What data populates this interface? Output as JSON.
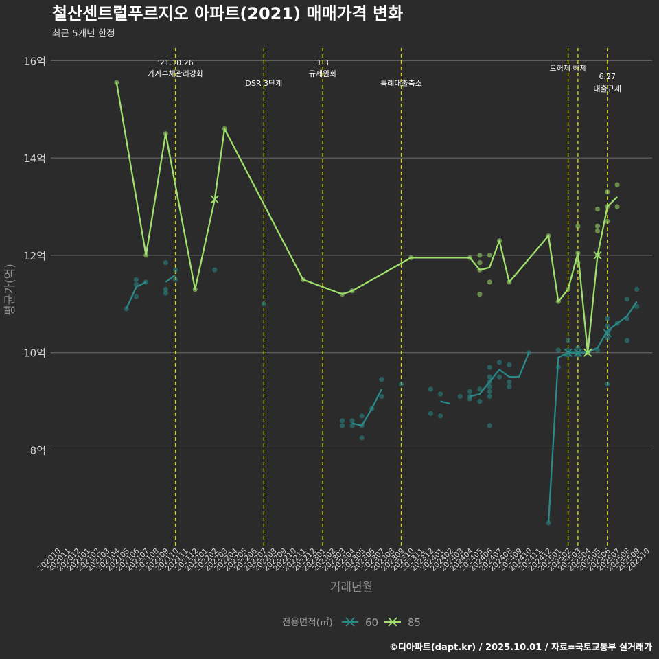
{
  "chart_data": {
    "type": "line",
    "title": "철산센트럴푸르지오 아파트(2021) 매매가격 변화",
    "subtitle": "최근 5개년 한정",
    "xlabel": "거래년월",
    "ylabel": "평균가(억)",
    "ylim": [
      6.0,
      16.5
    ],
    "yticks": [
      8,
      10,
      12,
      14,
      16
    ],
    "ytick_labels": [
      "8억",
      "10억",
      "12억",
      "14억",
      "16억"
    ],
    "x_categories": [
      "202010",
      "202011",
      "202012",
      "202101",
      "202102",
      "202103",
      "202104",
      "202105",
      "202106",
      "202107",
      "202108",
      "202109",
      "202110",
      "202111",
      "202112",
      "202201",
      "202202",
      "202203",
      "202204",
      "202205",
      "202206",
      "202207",
      "202208",
      "202209",
      "202210",
      "202211",
      "202212",
      "202301",
      "202302",
      "202303",
      "202304",
      "202305",
      "202306",
      "202307",
      "202308",
      "202309",
      "202310",
      "202311",
      "202312",
      "202401",
      "202402",
      "202403",
      "202404",
      "202405",
      "202406",
      "202407",
      "202408",
      "202409",
      "202410",
      "202411",
      "202412",
      "202501",
      "202502",
      "202503",
      "202504",
      "202505",
      "202506",
      "202507",
      "202508",
      "202509",
      "202510"
    ],
    "grid": true,
    "legend_title": "전용면적(㎡)",
    "legend_position": "bottom",
    "caption": "©디아파트(dapt.kr) / 2025.10.01 / 자료=국토교통부 실거래가",
    "events": [
      {
        "x": "202110",
        "label_lines": [
          "'21.10.26",
          "가계부채관리강화"
        ]
      },
      {
        "x": "202207",
        "label_lines": [
          "DSR 3단계"
        ]
      },
      {
        "x": "202301",
        "label_lines": [
          "1.3",
          "규제완화"
        ]
      },
      {
        "x": "202309",
        "label_lines": [
          "특례대출축소"
        ]
      },
      {
        "x": "202502",
        "label_lines": [
          "토허제 해제"
        ]
      },
      {
        "x": "202503",
        "label_lines": [
          ""
        ]
      },
      {
        "x": "202506",
        "label_lines": [
          "6.27",
          "대출규제"
        ]
      }
    ],
    "series": [
      {
        "name": "60",
        "color": "#2a8a8a",
        "line_segments": [
          [
            [
              "202105",
              10.9
            ],
            [
              "202106",
              11.35
            ],
            [
              "202107",
              11.45
            ]
          ],
          [
            [
              "202109",
              11.45
            ],
            [
              "202110",
              11.6
            ]
          ],
          [
            [
              "202304",
              8.55
            ],
            [
              "202305",
              8.5
            ],
            [
              "202306",
              8.85
            ],
            [
              "202307",
              9.25
            ]
          ],
          [
            [
              "202401",
              9.0
            ],
            [
              "202402",
              8.95
            ]
          ],
          [
            [
              "202404",
              9.1
            ],
            [
              "202405",
              9.15
            ],
            [
              "202406",
              9.4
            ],
            [
              "202407",
              9.65
            ],
            [
              "202408",
              9.5
            ],
            [
              "202409",
              9.5
            ],
            [
              "202410",
              10.0
            ]
          ],
          [
            [
              "202412",
              6.5
            ],
            [
              "202501",
              9.9
            ],
            [
              "202502",
              10.0
            ],
            [
              "202503",
              10.0
            ],
            [
              "202504",
              10.0
            ],
            [
              "202505",
              10.1
            ],
            [
              "202506",
              10.45
            ],
            [
              "202507",
              10.6
            ],
            [
              "202508",
              10.75
            ],
            [
              "202509",
              11.05
            ]
          ]
        ],
        "points": [
          [
            "202105",
            10.9
          ],
          [
            "202106",
            11.5
          ],
          [
            "202106",
            11.4
          ],
          [
            "202106",
            11.15
          ],
          [
            "202107",
            11.45
          ],
          [
            "202109",
            11.85
          ],
          [
            "202109",
            11.3
          ],
          [
            "202109",
            11.22
          ],
          [
            "202110",
            11.7
          ],
          [
            "202110",
            11.5
          ],
          [
            "202202",
            11.7
          ],
          [
            "202207",
            11.0
          ],
          [
            "202303",
            8.6
          ],
          [
            "202303",
            8.5
          ],
          [
            "202304",
            8.6
          ],
          [
            "202304",
            8.5
          ],
          [
            "202305",
            8.7
          ],
          [
            "202305",
            8.5
          ],
          [
            "202305",
            8.25
          ],
          [
            "202306",
            8.85
          ],
          [
            "202307",
            9.45
          ],
          [
            "202307",
            9.1
          ],
          [
            "202309",
            9.35
          ],
          [
            "202312",
            9.25
          ],
          [
            "202312",
            8.75
          ],
          [
            "202401",
            9.15
          ],
          [
            "202401",
            8.7
          ],
          [
            "202403",
            9.1
          ],
          [
            "202404",
            9.2
          ],
          [
            "202404",
            9.1
          ],
          [
            "202404",
            9.05
          ],
          [
            "202405",
            9.25
          ],
          [
            "202405",
            9.0
          ],
          [
            "202406",
            9.7
          ],
          [
            "202406",
            9.5
          ],
          [
            "202406",
            9.4
          ],
          [
            "202406",
            9.3
          ],
          [
            "202406",
            9.2
          ],
          [
            "202406",
            9.1
          ],
          [
            "202406",
            8.5
          ],
          [
            "202407",
            9.8
          ],
          [
            "202407",
            9.5
          ],
          [
            "202408",
            9.75
          ],
          [
            "202408",
            9.4
          ],
          [
            "202408",
            9.3
          ],
          [
            "202410",
            10.0
          ],
          [
            "202412",
            6.5
          ],
          [
            "202501",
            10.05
          ],
          [
            "202501",
            9.7
          ],
          [
            "202502",
            10.25
          ],
          [
            "202502",
            10.05
          ],
          [
            "202502",
            9.95
          ],
          [
            "202503",
            10.1
          ],
          [
            "202503",
            9.95
          ],
          [
            "202505",
            10.05
          ],
          [
            "202506",
            10.7
          ],
          [
            "202506",
            10.55
          ],
          [
            "202506",
            10.4
          ],
          [
            "202506",
            10.3
          ],
          [
            "202506",
            9.35
          ],
          [
            "202507",
            10.6
          ],
          [
            "202508",
            11.1
          ],
          [
            "202508",
            10.7
          ],
          [
            "202508",
            10.25
          ],
          [
            "202509",
            11.3
          ],
          [
            "202509",
            10.95
          ]
        ],
        "markers": [
          [
            "202502",
            10.0
          ],
          [
            "202503",
            10.0
          ],
          [
            "202504",
            10.0
          ],
          [
            "202506",
            10.4
          ]
        ]
      },
      {
        "name": "85",
        "color": "#a0e06c",
        "line_segments": [
          [
            [
              "202104",
              15.55
            ],
            [
              "202107",
              12.0
            ],
            [
              "202109",
              14.5
            ],
            [
              "202112",
              11.3
            ],
            [
              "202202",
              13.15
            ],
            [
              "202203",
              14.6
            ],
            [
              "202211",
              11.5
            ],
            [
              "202303",
              11.2
            ],
            [
              "202304",
              11.27
            ],
            [
              "202310",
              11.95
            ],
            [
              "202404",
              11.95
            ],
            [
              "202405",
              11.7
            ],
            [
              "202406",
              11.75
            ],
            [
              "202407",
              12.3
            ],
            [
              "202408",
              11.45
            ],
            [
              "202412",
              12.4
            ],
            [
              "202501",
              11.05
            ],
            [
              "202502",
              11.3
            ],
            [
              "202503",
              12.05
            ],
            [
              "202504",
              10.0
            ],
            [
              "202505",
              12.0
            ],
            [
              "202506",
              13.0
            ],
            [
              "202507",
              13.2
            ]
          ]
        ],
        "points": [
          [
            "202104",
            15.55
          ],
          [
            "202107",
            12.0
          ],
          [
            "202109",
            14.5
          ],
          [
            "202112",
            11.3
          ],
          [
            "202203",
            14.6
          ],
          [
            "202211",
            11.5
          ],
          [
            "202303",
            11.2
          ],
          [
            "202304",
            11.27
          ],
          [
            "202310",
            11.95
          ],
          [
            "202404",
            11.95
          ],
          [
            "202405",
            12.0
          ],
          [
            "202405",
            11.85
          ],
          [
            "202405",
            11.7
          ],
          [
            "202405",
            11.2
          ],
          [
            "202406",
            12.0
          ],
          [
            "202406",
            11.45
          ],
          [
            "202407",
            12.3
          ],
          [
            "202408",
            11.45
          ],
          [
            "202412",
            12.4
          ],
          [
            "202501",
            11.05
          ],
          [
            "202502",
            11.3
          ],
          [
            "202503",
            12.6
          ],
          [
            "202503",
            12.05
          ],
          [
            "202503",
            11.85
          ],
          [
            "202504",
            10.0
          ],
          [
            "202505",
            12.95
          ],
          [
            "202505",
            12.6
          ],
          [
            "202505",
            12.5
          ],
          [
            "202505",
            12.0
          ],
          [
            "202506",
            13.3
          ],
          [
            "202506",
            13.0
          ],
          [
            "202506",
            12.7
          ],
          [
            "202507",
            13.45
          ],
          [
            "202507",
            13.0
          ]
        ],
        "markers": [
          [
            "202202",
            13.15
          ],
          [
            "202504",
            10.0
          ],
          [
            "202505",
            12.0
          ]
        ]
      }
    ]
  }
}
